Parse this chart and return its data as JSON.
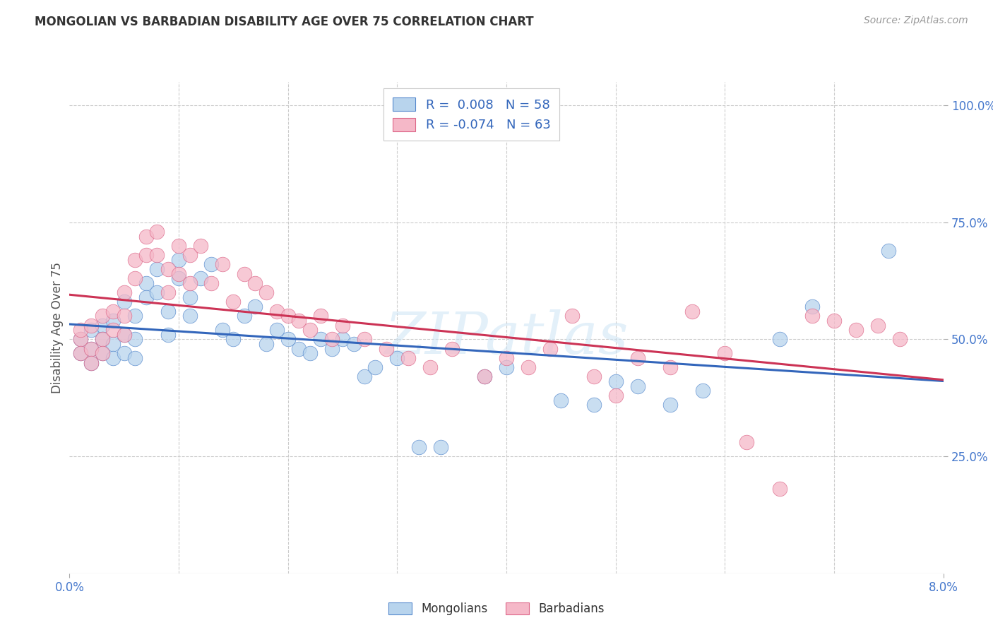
{
  "title": "MONGOLIAN VS BARBADIAN DISABILITY AGE OVER 75 CORRELATION CHART",
  "source": "Source: ZipAtlas.com",
  "ylabel": "Disability Age Over 75",
  "xlim": [
    0.0,
    0.08
  ],
  "ylim": [
    0.0,
    1.05
  ],
  "mongolians_R": 0.008,
  "mongolians_N": 58,
  "barbadians_R": -0.074,
  "barbadians_N": 63,
  "mongolian_fill": "#b8d4ed",
  "barbadian_fill": "#f5b8c8",
  "mongolian_edge": "#5588cc",
  "barbadian_edge": "#dd6688",
  "mongolian_line": "#3366bb",
  "barbadian_line": "#cc3355",
  "axis_label_color": "#4477cc",
  "grid_color": "#cccccc",
  "background": "#ffffff",
  "watermark": "ZIPatlas",
  "title_color": "#333333",
  "source_color": "#999999",
  "legend_text_color": "#3366bb",
  "mongolian_x": [
    0.001,
    0.001,
    0.002,
    0.002,
    0.002,
    0.003,
    0.003,
    0.003,
    0.004,
    0.004,
    0.004,
    0.005,
    0.005,
    0.005,
    0.006,
    0.006,
    0.006,
    0.007,
    0.007,
    0.008,
    0.008,
    0.009,
    0.009,
    0.01,
    0.01,
    0.011,
    0.011,
    0.012,
    0.013,
    0.014,
    0.015,
    0.016,
    0.017,
    0.018,
    0.019,
    0.02,
    0.021,
    0.022,
    0.023,
    0.024,
    0.025,
    0.026,
    0.027,
    0.028,
    0.03,
    0.032,
    0.034,
    0.038,
    0.04,
    0.045,
    0.048,
    0.05,
    0.052,
    0.055,
    0.058,
    0.065,
    0.068,
    0.075
  ],
  "mongolian_y": [
    0.5,
    0.47,
    0.52,
    0.48,
    0.45,
    0.53,
    0.5,
    0.47,
    0.54,
    0.49,
    0.46,
    0.58,
    0.51,
    0.47,
    0.55,
    0.5,
    0.46,
    0.62,
    0.59,
    0.65,
    0.6,
    0.56,
    0.51,
    0.63,
    0.67,
    0.59,
    0.55,
    0.63,
    0.66,
    0.52,
    0.5,
    0.55,
    0.57,
    0.49,
    0.52,
    0.5,
    0.48,
    0.47,
    0.5,
    0.48,
    0.5,
    0.49,
    0.42,
    0.44,
    0.46,
    0.27,
    0.27,
    0.42,
    0.44,
    0.37,
    0.36,
    0.41,
    0.4,
    0.36,
    0.39,
    0.5,
    0.57,
    0.69
  ],
  "barbadian_x": [
    0.001,
    0.001,
    0.001,
    0.002,
    0.002,
    0.002,
    0.003,
    0.003,
    0.003,
    0.004,
    0.004,
    0.005,
    0.005,
    0.005,
    0.006,
    0.006,
    0.007,
    0.007,
    0.008,
    0.008,
    0.009,
    0.009,
    0.01,
    0.01,
    0.011,
    0.011,
    0.012,
    0.013,
    0.014,
    0.015,
    0.016,
    0.017,
    0.018,
    0.019,
    0.02,
    0.021,
    0.022,
    0.023,
    0.024,
    0.025,
    0.027,
    0.029,
    0.031,
    0.033,
    0.035,
    0.038,
    0.04,
    0.042,
    0.044,
    0.046,
    0.048,
    0.05,
    0.052,
    0.055,
    0.057,
    0.06,
    0.062,
    0.065,
    0.068,
    0.07,
    0.072,
    0.074,
    0.076
  ],
  "barbadian_y": [
    0.5,
    0.47,
    0.52,
    0.53,
    0.48,
    0.45,
    0.55,
    0.5,
    0.47,
    0.56,
    0.52,
    0.6,
    0.55,
    0.51,
    0.67,
    0.63,
    0.72,
    0.68,
    0.73,
    0.68,
    0.65,
    0.6,
    0.7,
    0.64,
    0.68,
    0.62,
    0.7,
    0.62,
    0.66,
    0.58,
    0.64,
    0.62,
    0.6,
    0.56,
    0.55,
    0.54,
    0.52,
    0.55,
    0.5,
    0.53,
    0.5,
    0.48,
    0.46,
    0.44,
    0.48,
    0.42,
    0.46,
    0.44,
    0.48,
    0.55,
    0.42,
    0.38,
    0.46,
    0.44,
    0.56,
    0.47,
    0.28,
    0.18,
    0.55,
    0.54,
    0.52,
    0.53,
    0.5
  ]
}
